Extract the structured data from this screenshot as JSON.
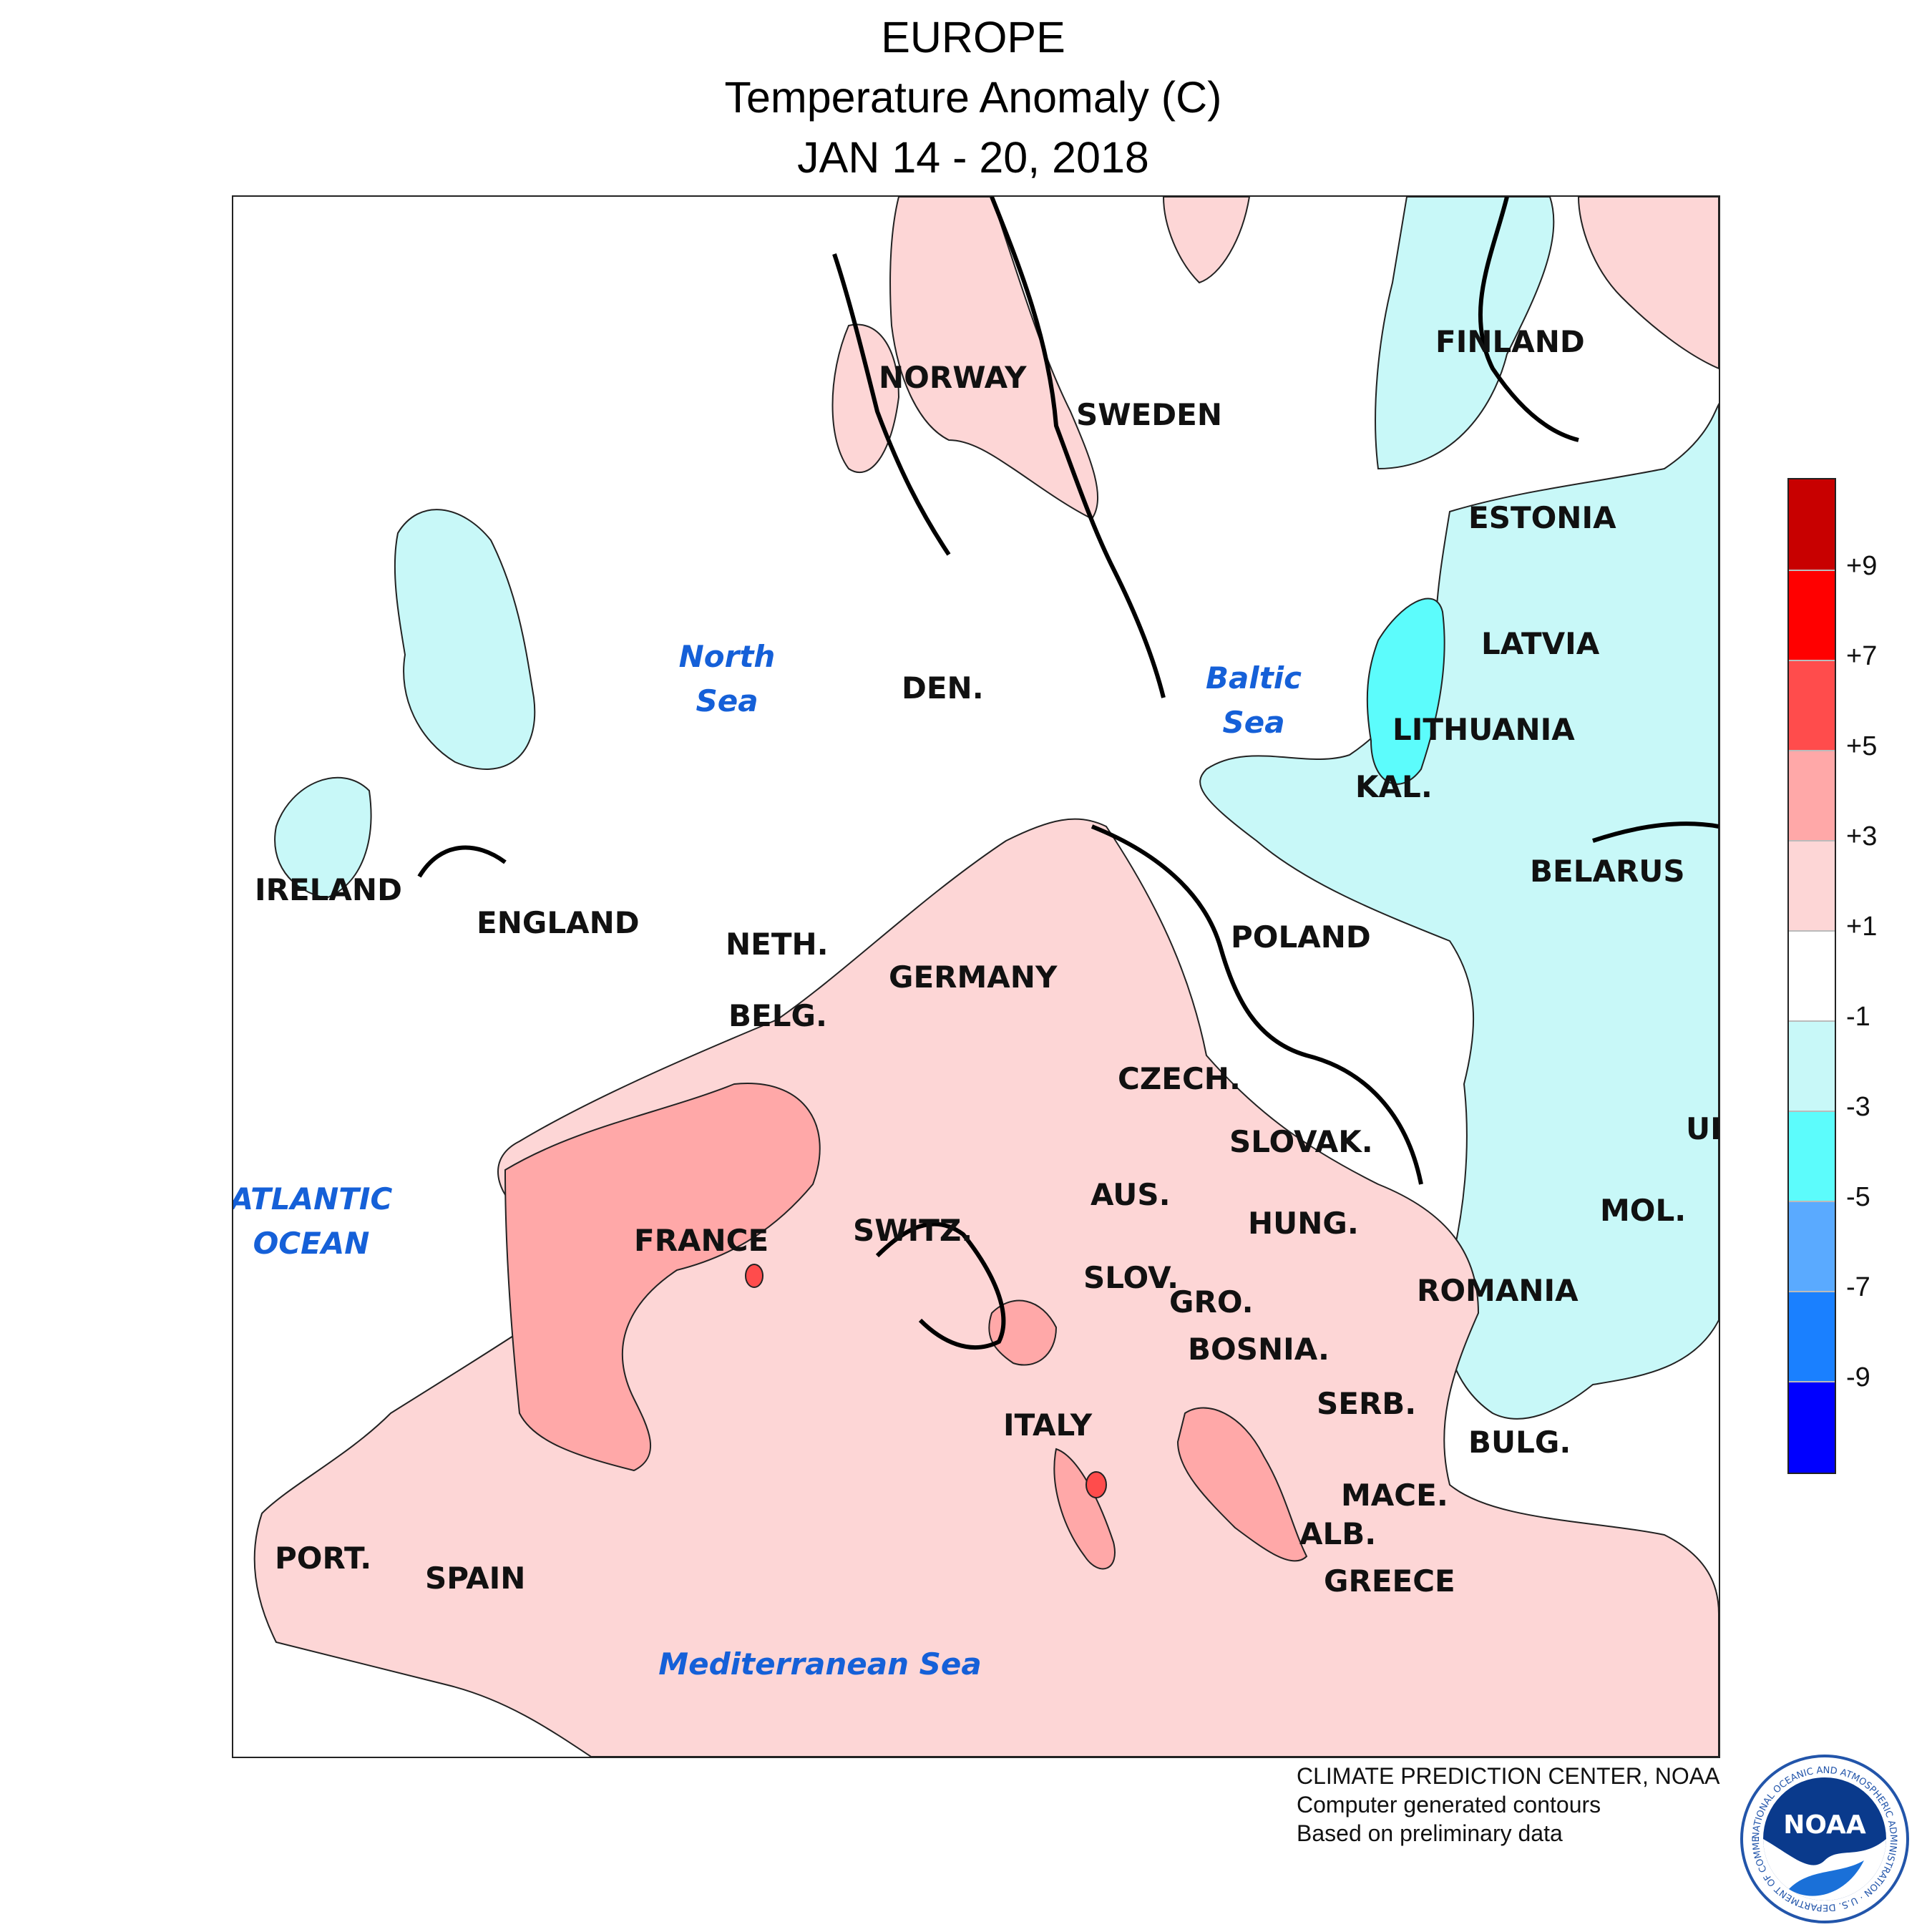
{
  "title": {
    "line1": "EUROPE",
    "line2": "Temperature Anomaly (C)",
    "line3": "JAN 14 - 20, 2018"
  },
  "countries": [
    "NORWAY",
    "SWEDEN",
    "FINLAND",
    "ESTONIA",
    "LATVIA",
    "LITHUANIA",
    "KAL.",
    "BELARUS",
    "POLAND",
    "DEN.",
    "IRELAND",
    "ENGLAND",
    "NETH.",
    "BELG.",
    "GERMANY",
    "CZECH.",
    "SLOVAK.",
    "UK",
    "MOL.",
    "HUNG.",
    "AUS.",
    "SWITZ.",
    "FRANCE",
    "SLOV.",
    "GRO.",
    "ROMANIA",
    "BOSNIA.",
    "SERB.",
    "BULG.",
    "ITALY",
    "MACE.",
    "ALB.",
    "GREECE",
    "PORT.",
    "SPAIN"
  ],
  "seas": [
    {
      "line1": "North",
      "line2": "Sea"
    },
    {
      "line1": "Baltic",
      "line2": "Sea"
    },
    {
      "line1": "ATLANTIC",
      "line2": "OCEAN"
    },
    {
      "line1": "Mediterranean Sea",
      "line2": ""
    }
  ],
  "legend": {
    "colors": [
      "#c80000",
      "#ff0000",
      "#ff4c4c",
      "#ffa8a8",
      "#fdd6d6",
      "#ffffff",
      "#c8f8f8",
      "#5cfcfc",
      "#5aaaff",
      "#1a80ff",
      "#0000ff"
    ],
    "labels": [
      "+9",
      "+7",
      "+5",
      "+3",
      "+1",
      "-1",
      "-3",
      "-5",
      "-7",
      "-9"
    ]
  },
  "credits": {
    "line1": "CLIMATE PREDICTION CENTER, NOAA",
    "line2": "Computer generated contours",
    "line3": "Based on preliminary data"
  },
  "logo": {
    "text": "NOAA",
    "ring_text": "NATIONAL OCEANIC AND ATMOSPHERIC ADMINISTRATION · U.S. DEPARTMENT OF COMMERCE"
  }
}
